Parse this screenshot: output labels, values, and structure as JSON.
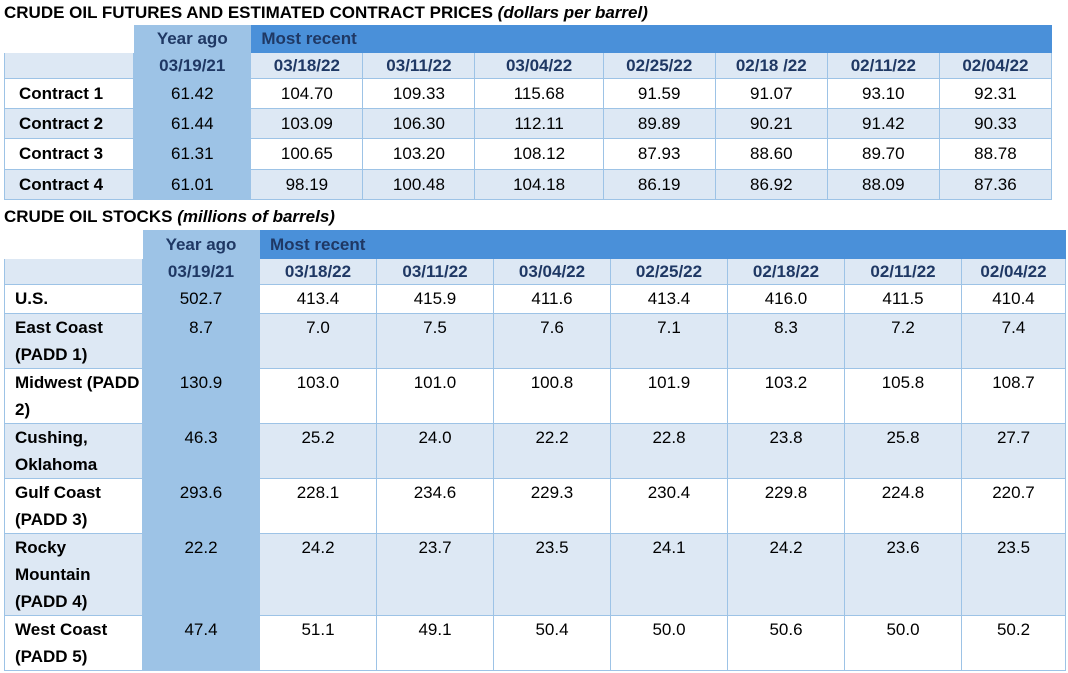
{
  "futures": {
    "title": "CRUDE OIL FUTURES AND ESTIMATED CONTRACT PRICES",
    "subtitle": "(dollars per barrel)",
    "year_ago_label": "Year ago",
    "most_recent_label": "Most recent",
    "dates": [
      "03/19/21",
      "03/18/22",
      "03/11/22",
      "03/04/22",
      "02/25/22",
      "02/18 /22",
      "02/11/22",
      "02/04/22"
    ],
    "rows": [
      {
        "label": "Contract 1",
        "values": [
          "61.42",
          "104.70",
          "109.33",
          "115.68",
          "91.59",
          "91.07",
          "93.10",
          "92.31"
        ]
      },
      {
        "label": "Contract 2",
        "values": [
          "61.44",
          "103.09",
          "106.30",
          "112.11",
          "89.89",
          "90.21",
          "91.42",
          "90.33"
        ]
      },
      {
        "label": "Contract 3",
        "values": [
          "61.31",
          "100.65",
          "103.20",
          "108.12",
          "87.93",
          "88.60",
          "89.70",
          "88.78"
        ]
      },
      {
        "label": "Contract 4",
        "values": [
          "61.01",
          "98.19",
          "100.48",
          "104.18",
          "86.19",
          "86.92",
          "88.09",
          "87.36"
        ]
      }
    ]
  },
  "stocks": {
    "title": "CRUDE OIL STOCKS",
    "subtitle": "(millions of barrels)",
    "year_ago_label": "Year ago",
    "most_recent_label": "Most recent",
    "dates": [
      "03/19/21",
      "03/18/22",
      "03/11/22",
      "03/04/22",
      "02/25/22",
      "02/18/22",
      "02/11/22",
      "02/04/22"
    ],
    "rows": [
      {
        "label": "U.S.",
        "values": [
          "502.7",
          "413.4",
          "415.9",
          "411.6",
          "413.4",
          "416.0",
          "411.5",
          "410.4"
        ]
      },
      {
        "label": "East Coast (PADD 1)",
        "values": [
          "8.7",
          "7.0",
          "7.5",
          "7.6",
          "7.1",
          "8.3",
          "7.2",
          "7.4"
        ]
      },
      {
        "label": "Midwest (PADD 2)",
        "values": [
          "130.9",
          "103.0",
          "101.0",
          "100.8",
          "101.9",
          "103.2",
          "105.8",
          "108.7"
        ]
      },
      {
        "label": "Cushing, Oklahoma",
        "values": [
          "46.3",
          "25.2",
          "24.0",
          "22.2",
          "22.8",
          "23.8",
          "25.8",
          "27.7"
        ]
      },
      {
        "label": "Gulf Coast (PADD 3)",
        "values": [
          "293.6",
          "228.1",
          "234.6",
          "229.3",
          "230.4",
          "229.8",
          "224.8",
          "220.7"
        ]
      },
      {
        "label": "Rocky Mountain (PADD 4)",
        "values": [
          "22.2",
          "24.2",
          "23.7",
          "23.5",
          "24.1",
          "24.2",
          "23.6",
          "23.5"
        ]
      },
      {
        "label": "West Coast (PADD 5)",
        "values": [
          "47.4",
          "51.1",
          "49.1",
          "50.4",
          "50.0",
          "50.6",
          "50.0",
          "50.2"
        ]
      }
    ]
  }
}
